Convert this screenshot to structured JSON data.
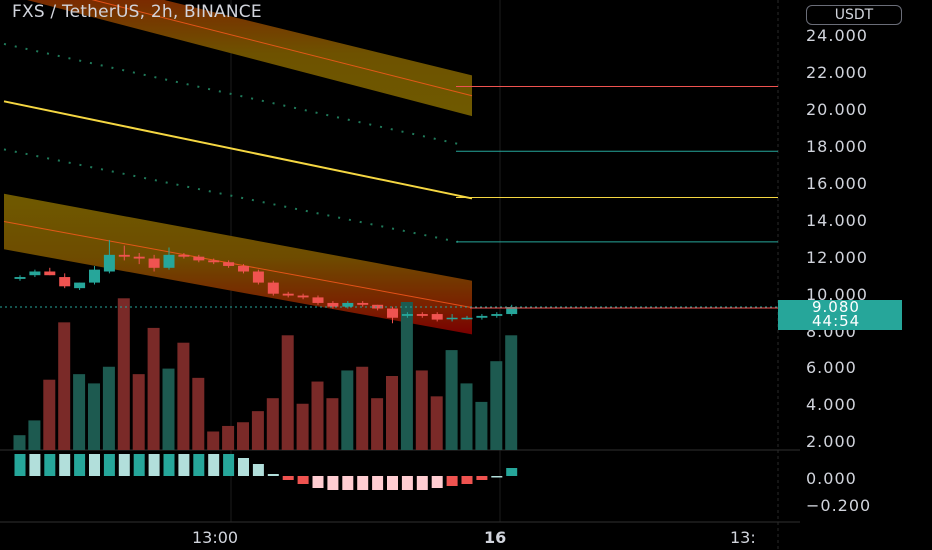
{
  "header": {
    "symbol_title": "FXS / TetherUS, 2h, BINANCE",
    "currency_button": "USDT"
  },
  "price_axis": {
    "labels": [
      "24.000",
      "22.000",
      "20.000",
      "18.000",
      "16.000",
      "14.000",
      "12.000",
      "10.000",
      "8.000",
      "6.000",
      "4.000",
      "2.000",
      "0.000",
      "−0.200"
    ]
  },
  "time_axis": {
    "labels": [
      "13:00",
      "16",
      "13:"
    ]
  },
  "last_price": {
    "value": "9.080",
    "countdown": "44:54"
  },
  "colors": {
    "up": "#26a69a",
    "down": "#ef5350",
    "background": "#000000",
    "axis_text": "#d1d4dc",
    "ma_line": "#f5d742",
    "band_outer": "#7a0000",
    "band_inner": "#6f5a00"
  },
  "chart_data": {
    "type": "candlestick",
    "candles": [
      {
        "o": 10.6,
        "h": 10.8,
        "l": 10.5,
        "c": 10.7
      },
      {
        "o": 10.8,
        "h": 11.1,
        "l": 10.7,
        "c": 11.0
      },
      {
        "o": 11.0,
        "h": 11.2,
        "l": 10.8,
        "c": 10.8
      },
      {
        "o": 10.7,
        "h": 10.9,
        "l": 10.1,
        "c": 10.2
      },
      {
        "o": 10.1,
        "h": 10.4,
        "l": 10.0,
        "c": 10.4
      },
      {
        "o": 10.4,
        "h": 11.3,
        "l": 10.3,
        "c": 11.1
      },
      {
        "o": 11.0,
        "h": 12.7,
        "l": 10.9,
        "c": 11.9
      },
      {
        "o": 11.9,
        "h": 12.4,
        "l": 11.6,
        "c": 11.8
      },
      {
        "o": 11.8,
        "h": 12.0,
        "l": 11.4,
        "c": 11.7
      },
      {
        "o": 11.7,
        "h": 11.9,
        "l": 11.0,
        "c": 11.2
      },
      {
        "o": 11.2,
        "h": 12.3,
        "l": 11.1,
        "c": 11.9
      },
      {
        "o": 11.9,
        "h": 12.0,
        "l": 11.7,
        "c": 11.8
      },
      {
        "o": 11.8,
        "h": 11.9,
        "l": 11.5,
        "c": 11.6
      },
      {
        "o": 11.6,
        "h": 11.7,
        "l": 11.4,
        "c": 11.5
      },
      {
        "o": 11.5,
        "h": 11.6,
        "l": 11.2,
        "c": 11.3
      },
      {
        "o": 11.3,
        "h": 11.4,
        "l": 10.9,
        "c": 11.0
      },
      {
        "o": 11.0,
        "h": 11.1,
        "l": 10.3,
        "c": 10.4
      },
      {
        "o": 10.4,
        "h": 10.5,
        "l": 9.7,
        "c": 9.8
      },
      {
        "o": 9.8,
        "h": 9.9,
        "l": 9.6,
        "c": 9.7
      },
      {
        "o": 9.7,
        "h": 9.8,
        "l": 9.5,
        "c": 9.6
      },
      {
        "o": 9.6,
        "h": 9.7,
        "l": 9.2,
        "c": 9.3
      },
      {
        "o": 9.3,
        "h": 9.4,
        "l": 9.0,
        "c": 9.1
      },
      {
        "o": 9.1,
        "h": 9.4,
        "l": 9.0,
        "c": 9.3
      },
      {
        "o": 9.3,
        "h": 9.4,
        "l": 9.1,
        "c": 9.2
      },
      {
        "o": 9.2,
        "h": 9.2,
        "l": 8.9,
        "c": 9.0
      },
      {
        "o": 9.0,
        "h": 9.1,
        "l": 8.2,
        "c": 8.5
      },
      {
        "o": 8.6,
        "h": 8.8,
        "l": 8.5,
        "c": 8.7
      },
      {
        "o": 8.7,
        "h": 8.8,
        "l": 8.5,
        "c": 8.6
      },
      {
        "o": 8.7,
        "h": 8.8,
        "l": 8.3,
        "c": 8.4
      },
      {
        "o": 8.5,
        "h": 8.7,
        "l": 8.3,
        "c": 8.5
      },
      {
        "o": 8.5,
        "h": 8.6,
        "l": 8.4,
        "c": 8.5
      },
      {
        "o": 8.5,
        "h": 8.7,
        "l": 8.4,
        "c": 8.6
      },
      {
        "o": 8.6,
        "h": 8.8,
        "l": 8.5,
        "c": 8.7
      },
      {
        "o": 8.7,
        "h": 9.2,
        "l": 8.6,
        "c": 9.08
      }
    ],
    "volume": [
      0.8,
      1.6,
      3.8,
      6.9,
      4.1,
      3.6,
      4.5,
      8.2,
      4.1,
      6.6,
      4.4,
      5.8,
      3.9,
      1.0,
      1.3,
      1.5,
      2.1,
      2.8,
      6.2,
      2.5,
      3.7,
      2.8,
      4.3,
      4.5,
      2.8,
      4.0,
      8.0,
      4.3,
      2.9,
      5.4,
      3.6,
      2.6,
      4.8,
      6.2
    ],
    "oscillator": [
      0.11,
      0.11,
      0.11,
      0.11,
      0.11,
      0.11,
      0.11,
      0.11,
      0.11,
      0.11,
      0.11,
      0.11,
      0.11,
      0.11,
      0.11,
      0.09,
      0.06,
      0.01,
      -0.02,
      -0.04,
      -0.06,
      -0.07,
      -0.07,
      -0.07,
      -0.07,
      -0.07,
      -0.07,
      -0.07,
      -0.06,
      -0.05,
      -0.04,
      -0.02,
      0.0,
      0.04
    ],
    "moving_average": {
      "start": 20.2,
      "end": 14.95
    },
    "upper_band": {
      "top_start": 27.8,
      "top_end": 21.6,
      "bottom_start": 26.0,
      "bottom_end": 19.4
    },
    "lower_band": {
      "top_start": 15.2,
      "top_end": 10.5,
      "bottom_start": 12.2,
      "bottom_end": 7.6
    },
    "dotted_lines": [
      {
        "start": 23.3,
        "end": 17.9
      },
      {
        "start": 17.6,
        "end": 12.6
      }
    ],
    "right_levels": [
      {
        "value": 21.0,
        "color": "#ef5350"
      },
      {
        "value": 17.5,
        "color": "#26a69a"
      },
      {
        "value": 15.0,
        "color": "#f5d742"
      },
      {
        "value": 12.6,
        "color": "#26a69a"
      }
    ],
    "ylim": [
      7.3,
      25.1
    ]
  }
}
